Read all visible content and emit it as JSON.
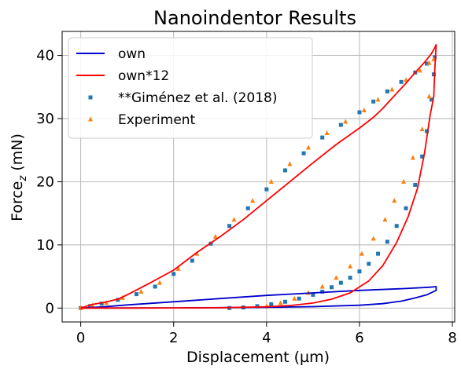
{
  "chart_data": {
    "type": "line",
    "title": "Nanoindentor Results",
    "xlabel": "Displacement (µm)",
    "ylabel_main": "Force",
    "ylabel_sub": "z",
    "ylabel_tail": " (mN)",
    "xlim": [
      -0.4,
      8.05
    ],
    "ylim": [
      -2.2,
      43.8
    ],
    "xticks": [
      0,
      2,
      4,
      6,
      8
    ],
    "yticks": [
      0,
      10,
      20,
      30,
      40
    ],
    "grid": true,
    "legend_position": "top-left",
    "series": [
      {
        "name": "own",
        "kind": "line",
        "color": "#0000cc",
        "x": [
          0.0,
          0.5,
          1.0,
          2.0,
          3.0,
          4.0,
          5.0,
          6.0,
          7.0,
          7.5,
          7.65,
          7.65,
          7.45,
          7.2,
          6.9,
          6.5,
          6.0,
          5.0,
          4.0,
          3.0,
          2.0,
          1.0,
          0.0
        ],
        "y": [
          0.0,
          0.2,
          0.5,
          1.0,
          1.5,
          2.0,
          2.4,
          2.8,
          3.1,
          3.3,
          3.4,
          2.8,
          2.1,
          1.6,
          1.1,
          0.7,
          0.45,
          0.22,
          0.12,
          0.06,
          0.03,
          0.01,
          0.0
        ]
      },
      {
        "name": "own*12",
        "kind": "line",
        "color": "#ff0000",
        "x": [
          0.0,
          0.2,
          0.5,
          0.8,
          1.0,
          1.5,
          2.0,
          2.5,
          3.0,
          3.5,
          4.0,
          4.5,
          5.0,
          5.5,
          6.0,
          6.3,
          6.5,
          6.8,
          7.0,
          7.2,
          7.4,
          7.55,
          7.62,
          7.65,
          7.62,
          7.6,
          7.52,
          7.4,
          7.25,
          7.05,
          6.8,
          6.5,
          6.2,
          5.8,
          5.4,
          5.0,
          4.5,
          4.0,
          3.0,
          2.0,
          1.0,
          0.0
        ],
        "y": [
          0.0,
          0.5,
          0.9,
          1.4,
          2.1,
          4.0,
          6.0,
          8.8,
          11.3,
          14.0,
          17.0,
          20.0,
          23.0,
          25.9,
          28.5,
          30.2,
          31.6,
          34.0,
          35.6,
          37.3,
          38.9,
          40.3,
          41.2,
          41.7,
          37.5,
          33.5,
          30.5,
          24.5,
          19.0,
          14.5,
          10.4,
          6.7,
          4.3,
          2.4,
          1.4,
          0.8,
          0.4,
          0.2,
          0.05,
          0.02,
          0.0,
          0.0
        ]
      },
      {
        "name": "**Giménez et al. (2018)",
        "kind": "scatter",
        "marker": "square",
        "color": "#1f77b4",
        "x": [
          0.0,
          0.2,
          0.45,
          0.8,
          1.2,
          1.6,
          2.0,
          2.4,
          2.8,
          3.2,
          3.6,
          4.0,
          4.4,
          4.8,
          5.2,
          5.6,
          6.0,
          6.3,
          6.6,
          6.9,
          7.2,
          7.45,
          7.62,
          7.6,
          7.55,
          7.45,
          7.35,
          7.2,
          7.0,
          6.8,
          6.6,
          6.4,
          6.2,
          6.0,
          5.8,
          5.6,
          5.4,
          5.2,
          5.0,
          4.7,
          4.4,
          4.1,
          3.8,
          3.5,
          3.2
        ],
        "y": [
          0.0,
          0.3,
          0.7,
          1.3,
          2.2,
          3.4,
          5.4,
          7.5,
          10.2,
          13.0,
          15.8,
          18.8,
          21.8,
          24.5,
          27.0,
          29.0,
          31.0,
          32.7,
          34.3,
          35.8,
          37.3,
          38.7,
          39.7,
          37.0,
          33.0,
          28.0,
          24.0,
          19.5,
          15.8,
          13.0,
          10.5,
          8.6,
          7.0,
          5.8,
          4.8,
          4.0,
          3.3,
          2.6,
          2.1,
          1.5,
          1.0,
          0.6,
          0.3,
          0.1,
          0.0
        ]
      },
      {
        "name": "Experiment",
        "kind": "scatter",
        "marker": "triangle",
        "color": "#ff7f0e",
        "x": [
          0.0,
          0.25,
          0.55,
          0.9,
          1.3,
          1.7,
          2.1,
          2.5,
          2.9,
          3.3,
          3.7,
          4.1,
          4.5,
          4.9,
          5.3,
          5.7,
          6.1,
          6.4,
          6.7,
          7.0,
          7.3,
          7.5,
          7.6,
          7.5,
          7.35,
          7.15,
          6.95,
          6.75,
          6.55,
          6.3,
          6.05,
          5.8,
          5.5,
          5.2,
          4.9,
          4.6,
          4.3,
          4.0
        ],
        "y": [
          0.0,
          0.4,
          0.8,
          1.6,
          2.6,
          4.0,
          6.2,
          8.6,
          11.3,
          14.0,
          17.0,
          20.0,
          22.8,
          25.4,
          27.7,
          29.5,
          31.3,
          33.0,
          34.6,
          36.1,
          37.6,
          38.8,
          39.4,
          33.5,
          28.3,
          23.8,
          20.0,
          17.0,
          14.0,
          11.0,
          8.6,
          6.6,
          4.8,
          3.4,
          2.4,
          1.5,
          0.8,
          0.3
        ]
      }
    ]
  }
}
